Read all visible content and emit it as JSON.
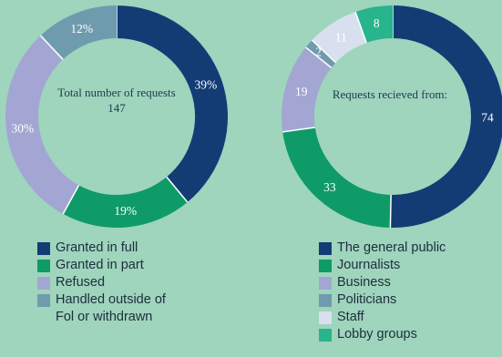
{
  "chart_data": [
    {
      "type": "pie",
      "center_text": [
        "Total number of requests",
        "147"
      ],
      "categories": [
        "Granted in full",
        "Granted in part",
        "Refused",
        "Handled outside of Fol or withdrawn"
      ],
      "values": [
        39,
        19,
        30,
        12
      ],
      "value_labels": [
        "39%",
        "19%",
        "30%",
        "12%"
      ],
      "colors": [
        "#133c75",
        "#0e9b68",
        "#a3a6d2",
        "#6f9bae"
      ],
      "legend": {
        "position": "bottom",
        "entries": [
          "Granted in full",
          "Granted in part",
          "Refused",
          "Handled outside of\nFol or withdrawn"
        ]
      }
    },
    {
      "type": "pie",
      "center_text": [
        "Requests recieved from:"
      ],
      "categories": [
        "The general public",
        "Journalists",
        "Business",
        "Politicians",
        "Staff",
        "Lobby groups"
      ],
      "values": [
        74,
        33,
        19,
        2,
        11,
        8
      ],
      "value_labels": [
        "74",
        "33",
        "19",
        "2",
        "11",
        "8"
      ],
      "colors": [
        "#133c75",
        "#0e9b68",
        "#a3a6d2",
        "#6f9bae",
        "#d8e0ef",
        "#28b48c"
      ],
      "legend": {
        "position": "bottom",
        "entries": [
          "The general public",
          "Journalists",
          "Business",
          "Politicians",
          "Staff",
          "Lobby groups"
        ]
      }
    }
  ]
}
